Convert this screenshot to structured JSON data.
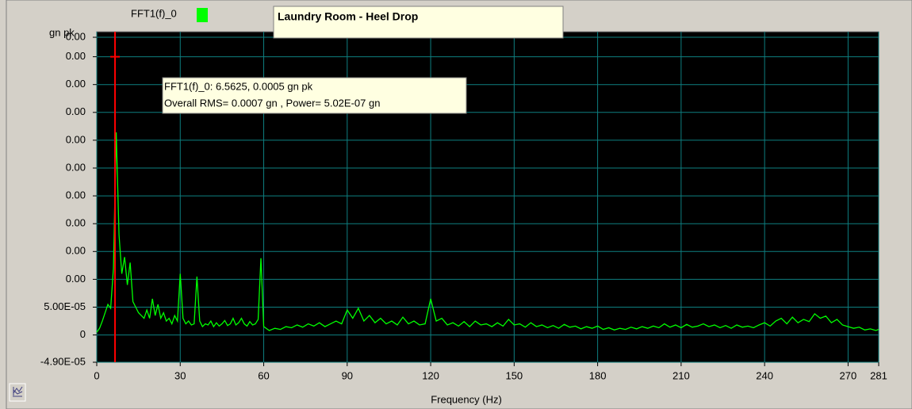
{
  "chart_data": {
    "type": "line",
    "title": "Laundry Room - Heel Drop",
    "y_label": "gn pk",
    "x_label": "Frequency (Hz)",
    "tooltip": [
      "FFT1(f)_0: 6.5625, 0.0005 gn pk",
      "Overall RMS= 0.0007 gn , Power= 5.02E-07 gn"
    ],
    "cursor": {
      "x": 6.5625,
      "y": 0.0005,
      "color": "#ff0000"
    },
    "xlim": [
      0,
      281
    ],
    "xticks": [
      0,
      30,
      60,
      90,
      120,
      150,
      180,
      210,
      240,
      270,
      281
    ],
    "ylim": [
      -4.9e-05,
      0.000545
    ],
    "yticks": [
      {
        "value": 0.000535,
        "label": "0.00"
      },
      {
        "value": 0.0005,
        "label": "0.00"
      },
      {
        "value": 0.00045,
        "label": "0.00"
      },
      {
        "value": 0.0004,
        "label": "0.00"
      },
      {
        "value": 0.00035,
        "label": "0.00"
      },
      {
        "value": 0.0003,
        "label": "0.00"
      },
      {
        "value": 0.00025,
        "label": "0.00"
      },
      {
        "value": 0.0002,
        "label": "0.00"
      },
      {
        "value": 0.00015,
        "label": "0.00"
      },
      {
        "value": 0.0001,
        "label": "0.00"
      },
      {
        "value": 5e-05,
        "label": "5.00E-05"
      },
      0,
      {
        "value": -4.9e-05,
        "label": "-4.90E-05"
      }
    ],
    "grid": true,
    "grid_color": "#0e7f80",
    "background": "#000000",
    "x": [
      0,
      1,
      2,
      3,
      4,
      5,
      6,
      7,
      8,
      9,
      10,
      11,
      12,
      13,
      14,
      15,
      16,
      17,
      18,
      19,
      20,
      21,
      22,
      23,
      24,
      25,
      26,
      27,
      28,
      29,
      30,
      31,
      32,
      33,
      34,
      35,
      36,
      37,
      38,
      39,
      40,
      41,
      42,
      43,
      44,
      45,
      46,
      47,
      48,
      49,
      50,
      51,
      52,
      53,
      54,
      55,
      56,
      57,
      58,
      59,
      60,
      62,
      64,
      66,
      68,
      70,
      72,
      74,
      76,
      78,
      80,
      82,
      84,
      86,
      88,
      90,
      92,
      94,
      96,
      98,
      100,
      102,
      104,
      106,
      108,
      110,
      112,
      114,
      116,
      118,
      120,
      122,
      124,
      126,
      128,
      130,
      132,
      134,
      136,
      138,
      140,
      142,
      144,
      146,
      148,
      150,
      152,
      154,
      156,
      158,
      160,
      162,
      164,
      166,
      168,
      170,
      172,
      174,
      176,
      178,
      180,
      182,
      184,
      186,
      188,
      190,
      192,
      194,
      196,
      198,
      200,
      202,
      204,
      206,
      208,
      210,
      212,
      214,
      216,
      218,
      220,
      222,
      224,
      226,
      228,
      230,
      232,
      234,
      236,
      238,
      240,
      242,
      244,
      246,
      248,
      250,
      252,
      254,
      256,
      258,
      260,
      262,
      264,
      266,
      268,
      270,
      272,
      274,
      276,
      278,
      280,
      281
    ],
    "series": [
      {
        "name": "FFT1(f)_0",
        "color": "#00ff00",
        "values": [
          5e-06,
          1.2e-05,
          2.5e-05,
          4e-05,
          5.5e-05,
          4.8e-05,
          0.00012,
          0.000364,
          0.00018,
          0.00011,
          0.00014,
          9e-05,
          0.00013,
          6e-05,
          5e-05,
          4e-05,
          3.5e-05,
          3e-05,
          4.5e-05,
          3e-05,
          6.5e-05,
          3.5e-05,
          5.5e-05,
          3e-05,
          4e-05,
          2.5e-05,
          3e-05,
          2e-05,
          3.5e-05,
          2.5e-05,
          0.00011,
          3e-05,
          2e-05,
          2.5e-05,
          1.8e-05,
          2e-05,
          0.000105,
          2.5e-05,
          1.5e-05,
          2e-05,
          1.8e-05,
          2.5e-05,
          1.5e-05,
          2.2e-05,
          1.6e-05,
          2e-05,
          2.6e-05,
          1.7e-05,
          2e-05,
          3e-05,
          1.8e-05,
          2.2e-05,
          3e-05,
          2e-05,
          1.6e-05,
          2.4e-05,
          1.8e-05,
          2e-05,
          2.8e-05,
          0.000138,
          1.5e-05,
          8e-06,
          1.2e-05,
          1e-05,
          1.5e-05,
          1.3e-05,
          1.8e-05,
          1.4e-05,
          2e-05,
          1.6e-05,
          2.2e-05,
          1.5e-05,
          2e-05,
          2.5e-05,
          2e-05,
          4.5e-05,
          3e-05,
          4.8e-05,
          2.5e-05,
          3.5e-05,
          2.2e-05,
          3e-05,
          2e-05,
          2.5e-05,
          1.8e-05,
          3.2e-05,
          2e-05,
          2.5e-05,
          1.8e-05,
          2e-05,
          6.5e-05,
          2.5e-05,
          3e-05,
          1.8e-05,
          2.2e-05,
          1.6e-05,
          2.4e-05,
          1.5e-05,
          2.5e-05,
          1.8e-05,
          2e-05,
          1.5e-05,
          2.2e-05,
          1.6e-05,
          2.8e-05,
          1.8e-05,
          2e-05,
          1.4e-05,
          2.2e-05,
          1.5e-05,
          1.8e-05,
          1.3e-05,
          1.7e-05,
          1.2e-05,
          1.9e-05,
          1.4e-05,
          1.6e-05,
          1.1e-05,
          1.5e-05,
          1.2e-05,
          1.6e-05,
          1e-05,
          1.3e-05,
          9e-06,
          1.2e-05,
          1e-05,
          1.4e-05,
          1.1e-05,
          1.5e-05,
          1.2e-05,
          1.6e-05,
          1.3e-05,
          2e-05,
          1.4e-05,
          1.8e-05,
          1.3e-05,
          1.9e-05,
          1.4e-05,
          1.6e-05,
          2e-05,
          1.5e-05,
          1.8e-05,
          1.3e-05,
          1.7e-05,
          1.2e-05,
          1.8e-05,
          1.4e-05,
          1.6e-05,
          1.3e-05,
          1.8e-05,
          2.2e-05,
          1.6e-05,
          2.5e-05,
          3e-05,
          2e-05,
          3.2e-05,
          2.2e-05,
          2.8e-05,
          2.4e-05,
          3.8e-05,
          3e-05,
          3.4e-05,
          2.2e-05,
          2.8e-05,
          1.8e-05,
          1.5e-05,
          1.2e-05,
          1.4e-05,
          9e-06,
          1.1e-05,
          8e-06,
          1e-05
        ]
      }
    ]
  }
}
